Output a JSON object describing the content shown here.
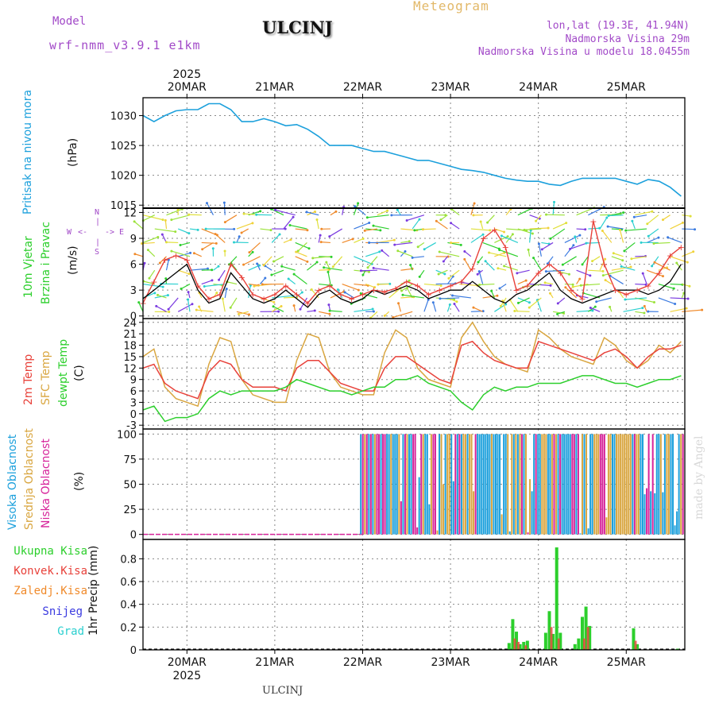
{
  "header": {
    "model_label": "Model",
    "model_name": "wrf-nmm_v3.9.1 e1km",
    "station": "ULCINJ",
    "meteogram": "Meteogram",
    "lonlat": "lon,lat (19.3E, 41.94N)",
    "elevation": "Nadmorska Visina 29m",
    "model_elevation": "Nadmorska Visina u modelu 18.0455m"
  },
  "footer": {
    "station": "ULCINJ",
    "credit": "made by Angel"
  },
  "colors": {
    "pressure": "#1ca0dc",
    "temp2m": "#e8413a",
    "sfc": "#d9a640",
    "dew": "#2ccf2c",
    "high": "#1ca0dc",
    "mid": "#d9a640",
    "low": "#d6239a",
    "rain_total": "#2ccf2c",
    "rain_conv": "#e8413a",
    "rain_frozen": "#f08a2a",
    "snow": "#3a3ae0",
    "graupel": "#2acfcf"
  },
  "chart_data": [
    {
      "type": "line",
      "id": "pressure",
      "ylabel": [
        "Pritisak na nivou mora",
        "(hPa)"
      ],
      "ylim": [
        1014.5,
        1033
      ],
      "yticks": [
        1015,
        1020,
        1025,
        1030
      ],
      "x_top_labels": [
        "20MAR",
        "21MAR",
        "22MAR",
        "23MAR",
        "24MAR",
        "25MAR"
      ],
      "x_top_year": "2025",
      "grid": true,
      "series": [
        {
          "name": "slp",
          "x": [
            0,
            3,
            6,
            9,
            12,
            15,
            18,
            21,
            24,
            27,
            30,
            33,
            36,
            39,
            42,
            45,
            48,
            51,
            54,
            57,
            60,
            63,
            66,
            69,
            72,
            75,
            78,
            81,
            84,
            87,
            90,
            93,
            96,
            99,
            102,
            105,
            108,
            111,
            114,
            117,
            120,
            123,
            126,
            129,
            132,
            135,
            138,
            141,
            144,
            147
          ],
          "y": [
            1030,
            1029,
            1030,
            1030.8,
            1031,
            1031,
            1032,
            1032,
            1031,
            1029,
            1029,
            1029.5,
            1029,
            1028.3,
            1028.5,
            1027.7,
            1026.5,
            1025,
            1025,
            1025,
            1024.5,
            1024,
            1024,
            1023.5,
            1023,
            1022.5,
            1022.5,
            1022,
            1021.5,
            1021,
            1020.8,
            1020.5,
            1020,
            1019.5,
            1019.2,
            1019,
            1019,
            1018.5,
            1018.3,
            1019,
            1019.5,
            1019.5,
            1019.5,
            1019.5,
            1019,
            1018.5,
            1019.3,
            1019,
            1018,
            1016.5
          ]
        }
      ]
    },
    {
      "type": "line",
      "id": "wind",
      "ylabel": [
        "10m Vjetar",
        "Brzina i Pravac",
        "(m/s)"
      ],
      "compass": [
        "N",
        "S",
        "W",
        "E"
      ],
      "ylim": [
        -0.3,
        12.5
      ],
      "yticks": [
        0,
        3,
        6,
        9,
        12
      ],
      "grid": true,
      "series": [
        {
          "name": "speed",
          "x": [
            0,
            3,
            6,
            9,
            12,
            15,
            18,
            21,
            24,
            27,
            30,
            33,
            36,
            39,
            42,
            45,
            48,
            51,
            54,
            57,
            60,
            63,
            66,
            69,
            72,
            75,
            78,
            81,
            84,
            87,
            90,
            93,
            96,
            99,
            102,
            105,
            108,
            111,
            114,
            117,
            120,
            123,
            126,
            129,
            132,
            135,
            138,
            141,
            144,
            147
          ],
          "y": [
            2,
            3,
            4,
            5,
            6,
            3,
            1.5,
            2,
            5,
            3.5,
            2,
            1.5,
            2,
            3,
            2,
            1,
            2.5,
            3,
            2,
            1.5,
            2,
            3,
            2.5,
            3,
            3.5,
            3,
            2,
            2.5,
            3,
            3,
            4,
            3,
            2,
            1.5,
            2.5,
            3,
            4,
            5,
            3,
            2,
            1.5,
            2,
            2.5,
            3,
            3,
            3,
            2.5,
            3,
            4,
            6
          ]
        },
        {
          "name": "gust",
          "x": [
            0,
            3,
            6,
            9,
            12,
            15,
            18,
            21,
            24,
            27,
            30,
            33,
            36,
            39,
            42,
            45,
            48,
            51,
            54,
            57,
            60,
            63,
            66,
            69,
            72,
            75,
            78,
            81,
            84,
            87,
            90,
            93,
            96,
            99,
            102,
            105,
            108,
            111,
            114,
            117,
            120,
            123,
            126,
            129,
            132,
            135,
            138,
            141,
            144,
            147
          ],
          "y": [
            1.5,
            4,
            6.5,
            7,
            6.5,
            3.5,
            2,
            2.5,
            6,
            4.5,
            2.5,
            2,
            2.5,
            3.5,
            2.5,
            1.5,
            3,
            3.5,
            2.5,
            2,
            2.5,
            3,
            2.8,
            3.2,
            4,
            3.5,
            2.5,
            3,
            3.5,
            4,
            5.5,
            9,
            10,
            8,
            3,
            3.5,
            5,
            6,
            5,
            3,
            2,
            11,
            6,
            3,
            2.5,
            3,
            3.5,
            5,
            7,
            8
          ]
        }
      ]
    },
    {
      "type": "line",
      "id": "temperature",
      "ylabel": [
        "2m Temp",
        "SFC Temp",
        "dewpt Temp",
        "(C)"
      ],
      "ylim": [
        -4,
        25
      ],
      "yticks": [
        -3,
        0,
        3,
        6,
        9,
        12,
        15,
        18,
        21,
        24
      ],
      "grid": true,
      "series": [
        {
          "name": "2m",
          "x": [
            0,
            3,
            6,
            9,
            12,
            15,
            18,
            21,
            24,
            27,
            30,
            33,
            36,
            39,
            42,
            45,
            48,
            51,
            54,
            57,
            60,
            63,
            66,
            69,
            72,
            75,
            78,
            81,
            84,
            87,
            90,
            93,
            96,
            99,
            102,
            105,
            108,
            111,
            114,
            117,
            120,
            123,
            126,
            129,
            132,
            135,
            138,
            141,
            144,
            147
          ],
          "y": [
            12,
            13,
            8,
            6,
            5,
            4,
            11,
            14,
            13,
            9,
            7,
            7,
            7,
            6,
            12,
            14,
            14,
            11,
            8,
            7,
            6,
            6,
            12,
            15,
            15,
            13,
            11,
            9,
            8,
            18,
            19,
            16,
            14,
            13,
            12,
            12,
            19,
            18,
            17,
            16,
            15,
            14,
            16,
            17,
            15,
            12,
            15,
            17,
            17,
            18
          ]
        },
        {
          "name": "sfc",
          "x": [
            0,
            3,
            6,
            9,
            12,
            15,
            18,
            21,
            24,
            27,
            30,
            33,
            36,
            39,
            42,
            45,
            48,
            51,
            54,
            57,
            60,
            63,
            66,
            69,
            72,
            75,
            78,
            81,
            84,
            87,
            90,
            93,
            96,
            99,
            102,
            105,
            108,
            111,
            114,
            117,
            120,
            123,
            126,
            129,
            132,
            135,
            138,
            141,
            144,
            147
          ],
          "y": [
            15,
            17,
            7,
            4,
            3,
            2,
            13,
            20,
            19,
            9,
            5,
            4,
            3,
            3,
            14,
            21,
            20,
            11,
            7,
            6,
            5,
            5,
            16,
            22,
            20,
            12,
            9,
            8,
            7,
            20,
            24,
            19,
            15,
            13,
            12,
            11,
            22,
            20,
            17,
            15,
            14,
            13,
            20,
            18,
            14,
            12,
            14,
            18,
            16,
            19
          ]
        },
        {
          "name": "dewpt",
          "x": [
            0,
            3,
            6,
            9,
            12,
            15,
            18,
            21,
            24,
            27,
            30,
            33,
            36,
            39,
            42,
            45,
            48,
            51,
            54,
            57,
            60,
            63,
            66,
            69,
            72,
            75,
            78,
            81,
            84,
            87,
            90,
            93,
            96,
            99,
            102,
            105,
            108,
            111,
            114,
            117,
            120,
            123,
            126,
            129,
            132,
            135,
            138,
            141,
            144,
            147
          ],
          "y": [
            1,
            2,
            -2,
            -1,
            -1,
            0,
            4,
            6,
            5,
            6,
            6,
            6,
            6,
            7,
            9,
            8,
            7,
            6,
            6,
            5,
            6,
            7,
            7,
            9,
            9,
            10,
            8,
            7,
            6,
            3,
            1,
            5,
            7,
            6,
            7,
            7,
            8,
            8,
            8,
            9,
            10,
            10,
            9,
            8,
            8,
            7,
            8,
            9,
            9,
            10
          ]
        }
      ]
    },
    {
      "type": "bar",
      "id": "cloud",
      "ylabel": [
        "Visoka Oblacnost",
        "Srednja Oblacnost",
        "Niska Oblacnost",
        "(%)"
      ],
      "ylim": [
        -5,
        105
      ],
      "yticks": [
        0,
        25,
        50,
        75,
        100
      ],
      "grid": true,
      "note": "0% from start until hour 60; frequent 100% bars afterwards"
    },
    {
      "type": "bar",
      "id": "precip",
      "ylabel": [
        "1hr Precip (mm)"
      ],
      "legend": [
        "Ukupna Kisa",
        "Konvek.Kisa",
        "Zaledj.Kisa",
        "Snijeg",
        "Grad"
      ],
      "ylim": [
        0,
        0.97
      ],
      "yticks": [
        0,
        0.2,
        0.4,
        0.6,
        0.8
      ],
      "x_bottom_labels": [
        "20MAR",
        "21MAR",
        "22MAR",
        "23MAR",
        "24MAR",
        "25MAR"
      ],
      "x_bottom_year": "2025",
      "grid": true,
      "series": [
        {
          "name": "total",
          "x": [
            100,
            101,
            102,
            103,
            104,
            105,
            110,
            111,
            112,
            113,
            114,
            118,
            119,
            120,
            121,
            122,
            134,
            135,
            146
          ],
          "y": [
            0.06,
            0.27,
            0.16,
            0.05,
            0.07,
            0.08,
            0.15,
            0.34,
            0.14,
            0.9,
            0.15,
            0.05,
            0.1,
            0.29,
            0.38,
            0.21,
            0.19,
            0.05,
            0.01
          ]
        },
        {
          "name": "convective",
          "x": [
            101,
            102,
            104,
            111,
            113,
            120,
            121,
            134
          ],
          "y": [
            0.1,
            0.07,
            0.04,
            0.2,
            0.1,
            0.1,
            0.2,
            0.08
          ]
        }
      ]
    }
  ]
}
